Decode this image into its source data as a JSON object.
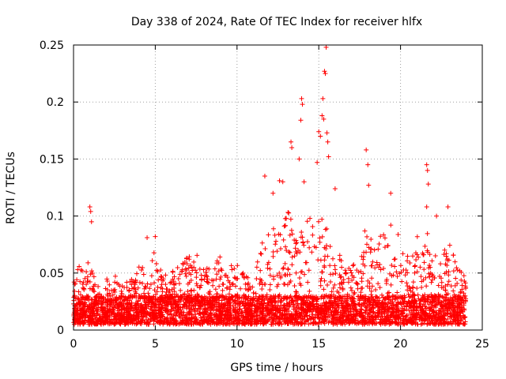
{
  "chart_data": {
    "type": "scatter",
    "title": "Day 338 of 2024, Rate Of TEC Index for receiver hlfx",
    "xlabel": "GPS time / hours",
    "ylabel": "ROTI / TECUs",
    "xlim": [
      0,
      25
    ],
    "ylim": [
      0,
      0.25
    ],
    "grid": true,
    "marker": "plus",
    "color": "#ff0000",
    "x_ticks": [
      0,
      5,
      10,
      15,
      20,
      25
    ],
    "x_tick_labels": [
      "0",
      "5",
      "10",
      "15",
      "20",
      "25"
    ],
    "y_ticks": [
      0,
      0.05,
      0.1,
      0.15,
      0.2,
      0.25
    ],
    "y_tick_labels": [
      "0",
      "0.05",
      "0.1",
      "0.15",
      "0.2",
      "0.25"
    ],
    "series": [
      {
        "name": "ROTI",
        "envelope": {
          "description": "approximate upper envelope of the dense point cloud (hours, ROTI)",
          "x": [
            0,
            0.3,
            0.7,
            1.0,
            1.3,
            1.6,
            2.0,
            2.5,
            3.0,
            3.5,
            4.0,
            4.5,
            5.0,
            5.5,
            6.0,
            6.5,
            7.0,
            7.5,
            8.0,
            8.5,
            9.0,
            9.5,
            10.0,
            10.5,
            11.0,
            11.5,
            12.0,
            12.5,
            13.0,
            13.5,
            14.0,
            14.5,
            15.0,
            15.5,
            16.0,
            16.5,
            17.0,
            17.5,
            18.0,
            18.5,
            19.0,
            19.5,
            20.0,
            20.5,
            21.0,
            21.5,
            22.0,
            22.5,
            23.0,
            23.5,
            24.0
          ],
          "y": [
            0.05,
            0.06,
            0.05,
            0.07,
            0.045,
            0.035,
            0.045,
            0.05,
            0.04,
            0.045,
            0.06,
            0.065,
            0.07,
            0.05,
            0.05,
            0.06,
            0.065,
            0.07,
            0.06,
            0.055,
            0.065,
            0.06,
            0.06,
            0.05,
            0.045,
            0.08,
            0.085,
            0.1,
            0.11,
            0.09,
            0.09,
            0.1,
            0.11,
            0.09,
            0.085,
            0.06,
            0.055,
            0.065,
            0.1,
            0.075,
            0.09,
            0.095,
            0.08,
            0.065,
            0.085,
            0.095,
            0.07,
            0.065,
            0.08,
            0.055,
            0.05
          ]
        },
        "baseline_range": [
          0.005,
          0.03
        ],
        "outliers": [
          {
            "x": 1.0,
            "y": 0.108
          },
          {
            "x": 1.05,
            "y": 0.104
          },
          {
            "x": 1.1,
            "y": 0.095
          },
          {
            "x": 4.5,
            "y": 0.081
          },
          {
            "x": 5.0,
            "y": 0.082
          },
          {
            "x": 11.7,
            "y": 0.135
          },
          {
            "x": 12.2,
            "y": 0.12
          },
          {
            "x": 12.6,
            "y": 0.131
          },
          {
            "x": 12.8,
            "y": 0.13
          },
          {
            "x": 13.3,
            "y": 0.165
          },
          {
            "x": 13.35,
            "y": 0.16
          },
          {
            "x": 13.8,
            "y": 0.15
          },
          {
            "x": 13.9,
            "y": 0.184
          },
          {
            "x": 13.95,
            "y": 0.203
          },
          {
            "x": 14.0,
            "y": 0.198
          },
          {
            "x": 14.1,
            "y": 0.13
          },
          {
            "x": 14.9,
            "y": 0.147
          },
          {
            "x": 15.0,
            "y": 0.174
          },
          {
            "x": 15.1,
            "y": 0.17
          },
          {
            "x": 15.2,
            "y": 0.188
          },
          {
            "x": 15.25,
            "y": 0.203
          },
          {
            "x": 15.3,
            "y": 0.185
          },
          {
            "x": 15.35,
            "y": 0.227
          },
          {
            "x": 15.4,
            "y": 0.225
          },
          {
            "x": 15.45,
            "y": 0.248
          },
          {
            "x": 15.5,
            "y": 0.173
          },
          {
            "x": 15.55,
            "y": 0.165
          },
          {
            "x": 15.6,
            "y": 0.152
          },
          {
            "x": 16.0,
            "y": 0.124
          },
          {
            "x": 17.9,
            "y": 0.158
          },
          {
            "x": 18.0,
            "y": 0.145
          },
          {
            "x": 18.05,
            "y": 0.127
          },
          {
            "x": 19.4,
            "y": 0.12
          },
          {
            "x": 21.6,
            "y": 0.145
          },
          {
            "x": 21.65,
            "y": 0.14
          },
          {
            "x": 21.7,
            "y": 0.128
          },
          {
            "x": 21.6,
            "y": 0.108
          },
          {
            "x": 22.2,
            "y": 0.1
          },
          {
            "x": 22.9,
            "y": 0.108
          }
        ]
      }
    ]
  }
}
